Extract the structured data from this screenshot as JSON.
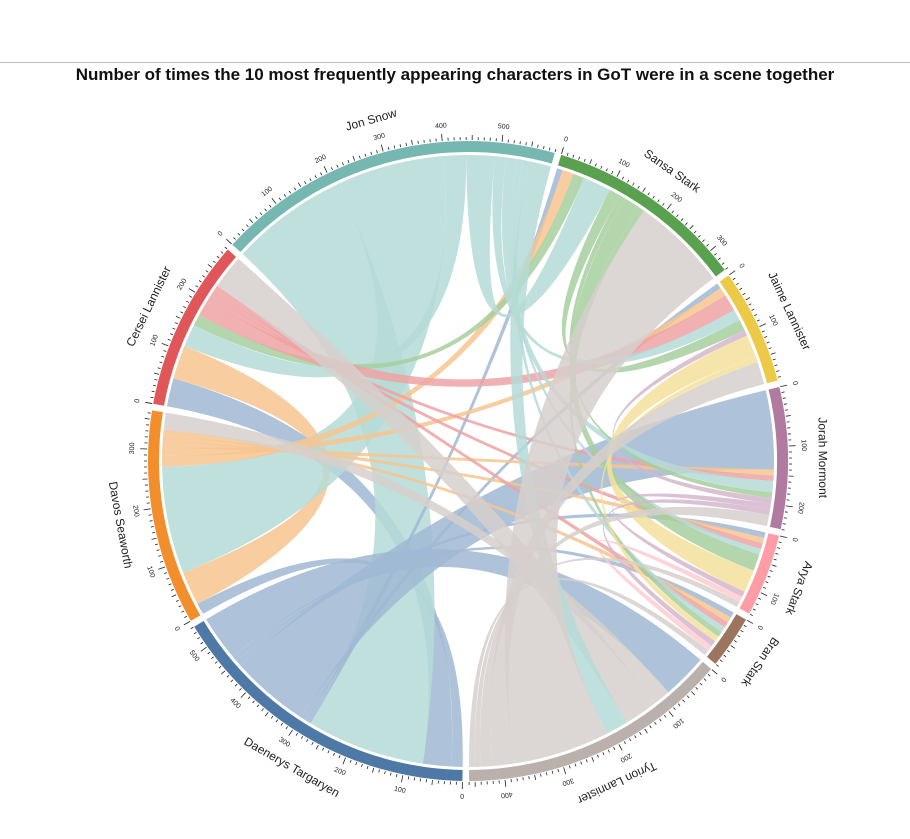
{
  "chart_data": {
    "type": "chord",
    "title": "Number of times the 10 most frequently appearing characters in GoT were in a scene together",
    "characters": [
      {
        "name": "Daenerys Targaryen",
        "color": "#4e79a7",
        "ribbon_color": "#a0b8d3"
      },
      {
        "name": "Davos Seaworth",
        "color": "#f28e2b",
        "ribbon_color": "#f7c48f"
      },
      {
        "name": "Cersei Lannister",
        "color": "#e15759",
        "ribbon_color": "#eea2a3"
      },
      {
        "name": "Jon Snow",
        "color": "#76b7b2",
        "ribbon_color": "#b5dad7"
      },
      {
        "name": "Sansa Stark",
        "color": "#59a14f",
        "ribbon_color": "#a6cf9f"
      },
      {
        "name": "Jaime Lannister",
        "color": "#edc948",
        "ribbon_color": "#f4e09b"
      },
      {
        "name": "Jorah Mormont",
        "color": "#b07aa1",
        "ribbon_color": "#d4b6cc"
      },
      {
        "name": "Arya Stark",
        "color": "#ff9da7",
        "ribbon_color": "#ffccd1"
      },
      {
        "name": "Bran Stark",
        "color": "#9c755f",
        "ribbon_color": "#c9b3a6"
      },
      {
        "name": "Tyrion Lannister",
        "color": "#bab0ac",
        "ribbon_color": "#d6cfcc"
      }
    ],
    "matrix": [
      [
        0,
        20,
        50,
        210,
        10,
        10,
        140,
        10,
        10,
        80
      ],
      [
        20,
        0,
        60,
        190,
        20,
        15,
        10,
        10,
        10,
        30
      ],
      [
        50,
        60,
        0,
        40,
        20,
        30,
        10,
        10,
        10,
        60
      ],
      [
        210,
        190,
        40,
        0,
        50,
        20,
        20,
        10,
        10,
        40
      ],
      [
        10,
        20,
        20,
        50,
        0,
        20,
        10,
        30,
        10,
        170
      ],
      [
        10,
        15,
        30,
        20,
        20,
        0,
        10,
        40,
        10,
        40
      ],
      [
        140,
        10,
        10,
        20,
        10,
        10,
        0,
        10,
        10,
        20
      ],
      [
        10,
        10,
        10,
        10,
        30,
        40,
        10,
        0,
        10,
        10
      ],
      [
        10,
        10,
        10,
        10,
        10,
        10,
        10,
        10,
        0,
        10
      ],
      [
        80,
        30,
        60,
        40,
        170,
        40,
        20,
        10,
        10,
        0
      ]
    ],
    "tick_step": 100,
    "tick_minor": 10
  }
}
